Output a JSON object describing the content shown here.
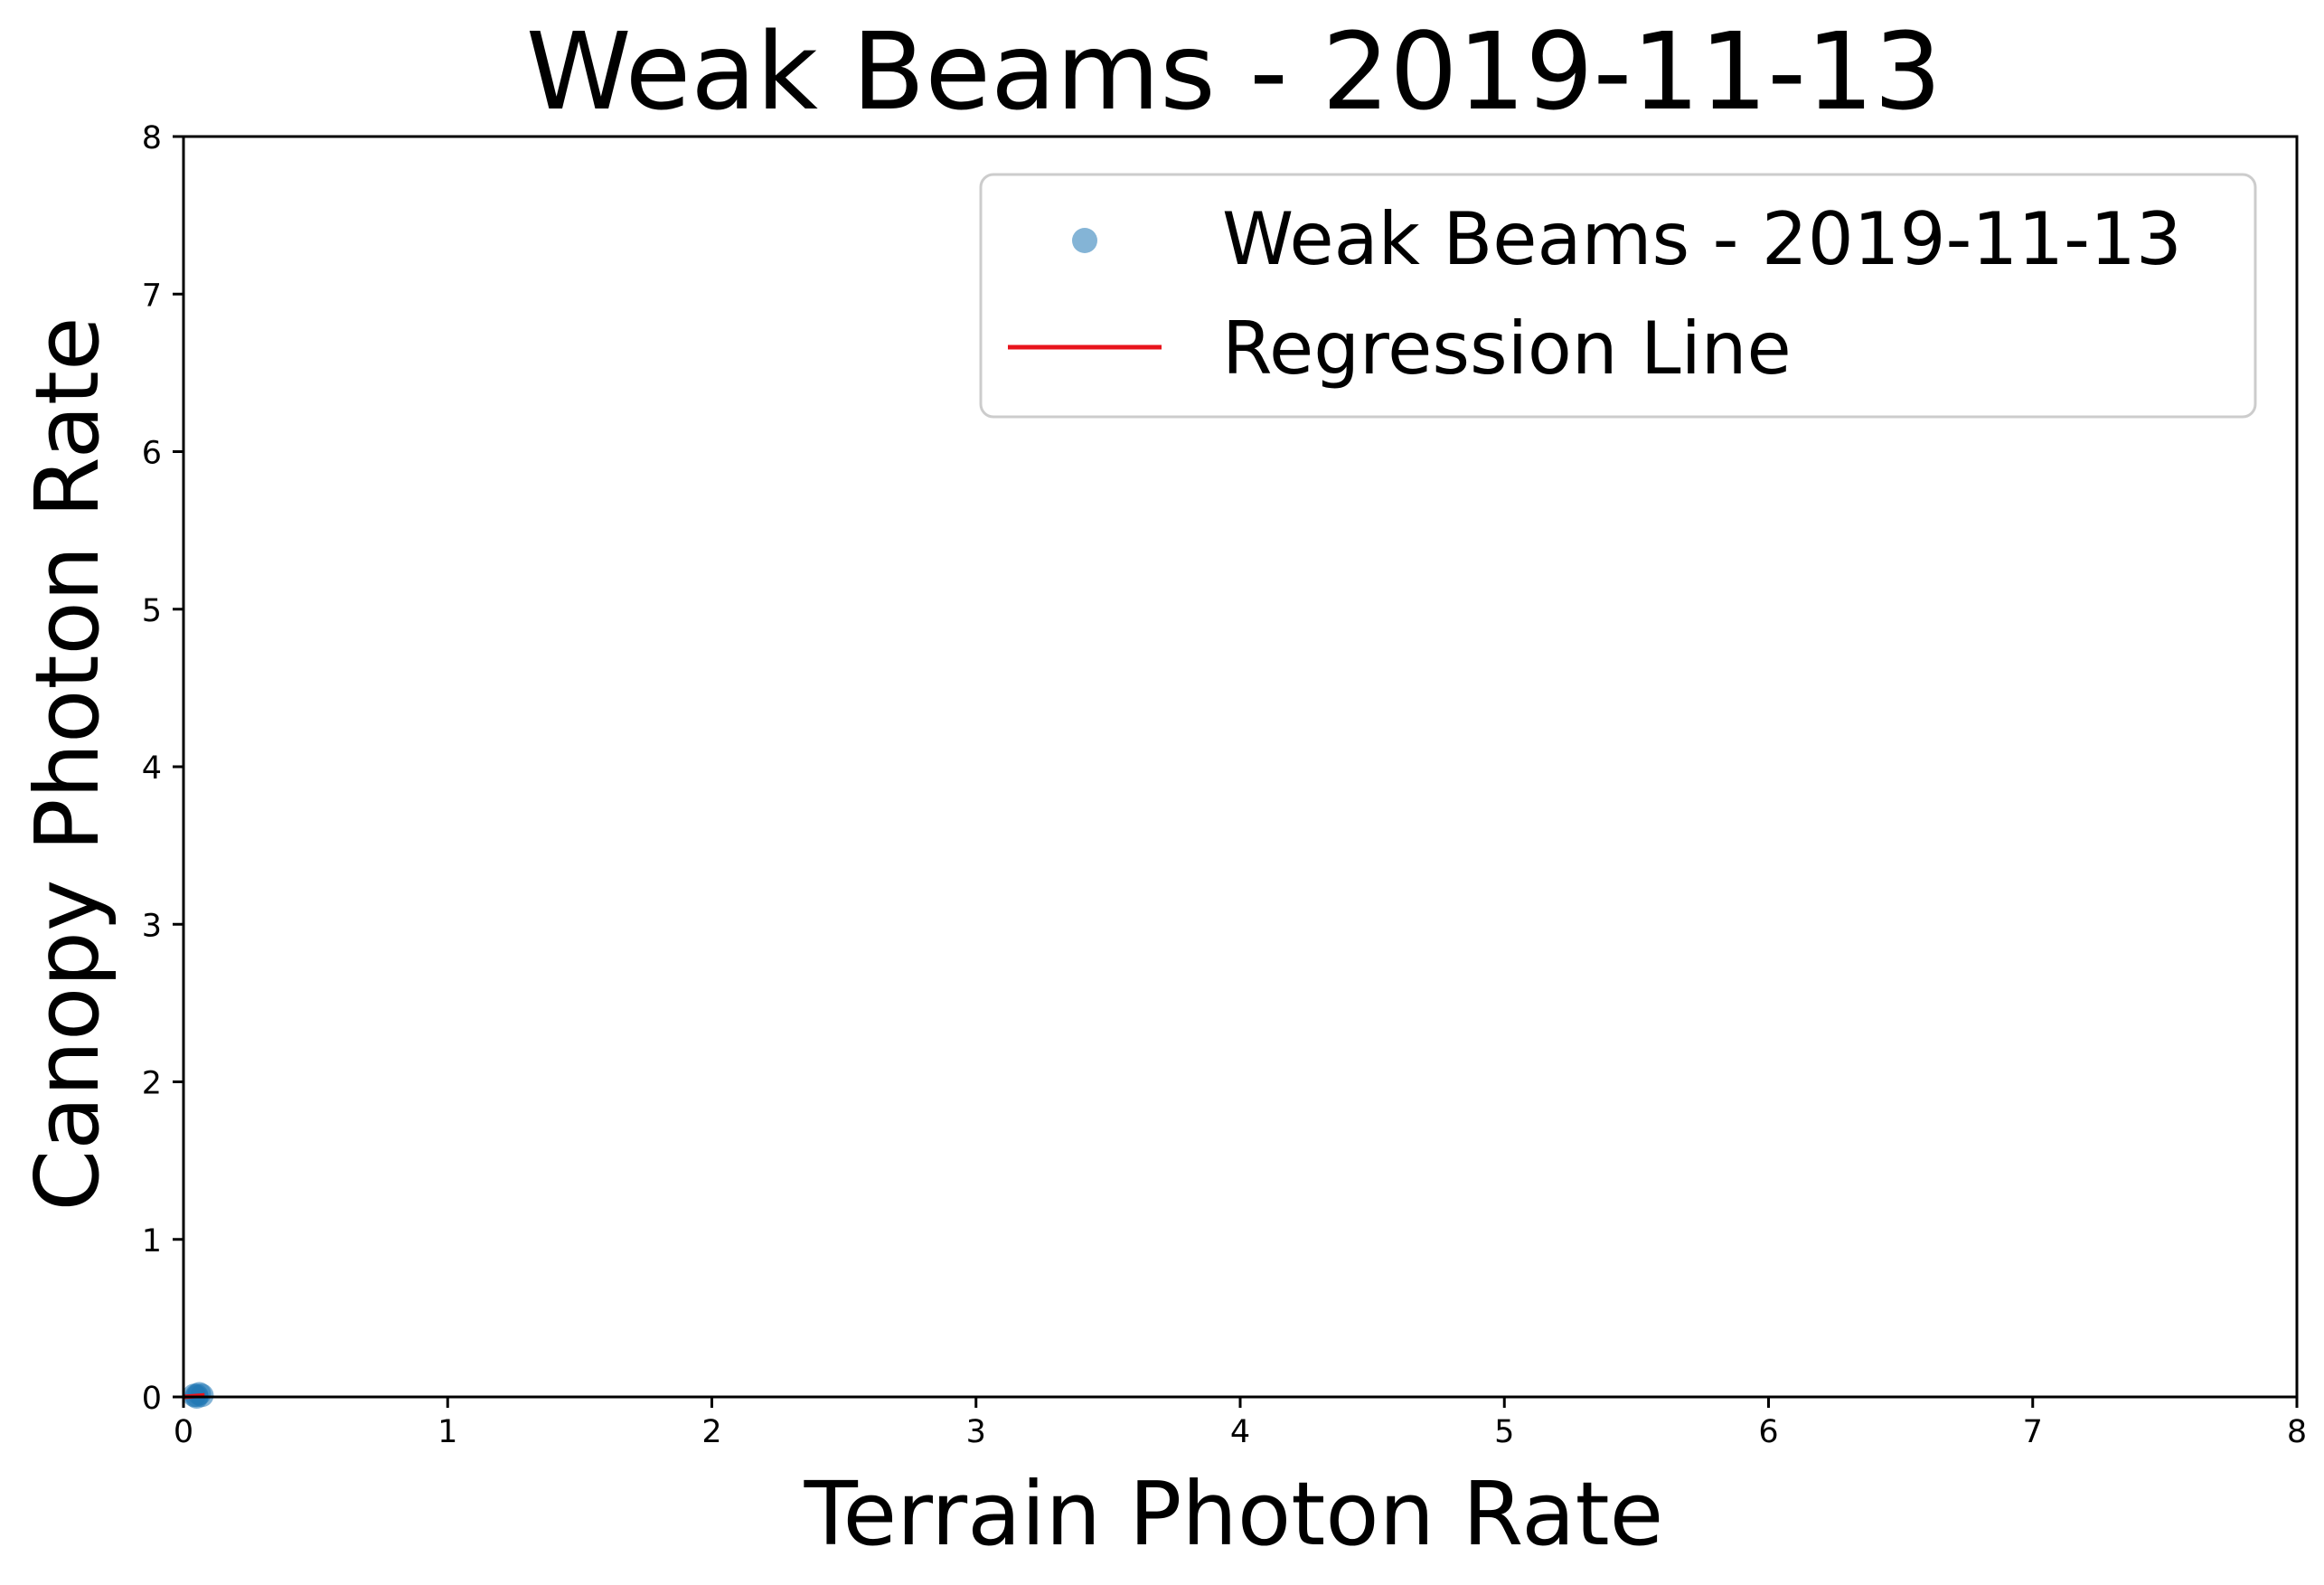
{
  "chart_data": {
    "type": "scatter",
    "title": "Weak Beams - 2019-11-13",
    "xlabel": "Terrain Photon Rate",
    "ylabel": "Canopy Photon Rate",
    "xlim": [
      0,
      8
    ],
    "ylim": [
      0,
      8
    ],
    "xticks": [
      "0",
      "1",
      "2",
      "3",
      "4",
      "5",
      "6",
      "7",
      "8"
    ],
    "yticks": [
      "0",
      "1",
      "2",
      "3",
      "4",
      "5",
      "6",
      "7",
      "8"
    ],
    "grid": false,
    "legend_position": "top-right",
    "series": [
      {
        "name": "Weak Beams - 2019-11-13",
        "kind": "scatter",
        "color": "#1f77b4",
        "points": [
          {
            "x": 0.04,
            "y": 0.01
          },
          {
            "x": 0.05,
            "y": 0.01
          },
          {
            "x": 0.06,
            "y": 0.02
          },
          {
            "x": 0.07,
            "y": 0.01
          },
          {
            "x": 0.05,
            "y": 0.0
          }
        ]
      },
      {
        "name": "Regression Line",
        "kind": "line",
        "color": "#e8141c",
        "points": [
          {
            "x": 0.0,
            "y": 0.0
          },
          {
            "x": 0.08,
            "y": 0.01
          }
        ]
      }
    ]
  }
}
